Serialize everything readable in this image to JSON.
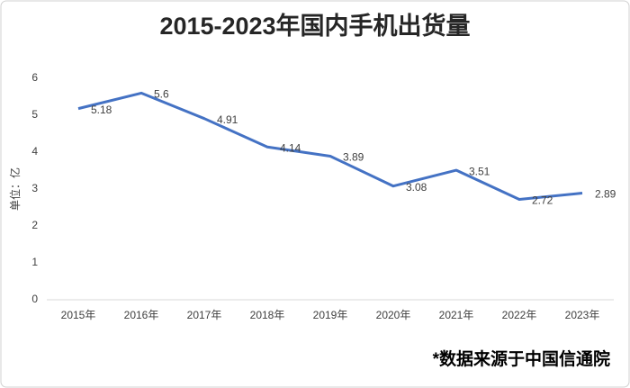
{
  "chart_data": {
    "type": "line",
    "title": "2015-2023年国内手机出货量",
    "y_label": "单位：亿",
    "note": "*数据来源于中国信通院",
    "categories": [
      "2015年",
      "2016年",
      "2017年",
      "2018年",
      "2019年",
      "2020年",
      "2021年",
      "2022年",
      "2023年"
    ],
    "values": [
      5.18,
      5.6,
      4.91,
      4.14,
      3.89,
      3.08,
      3.51,
      2.72,
      2.89
    ],
    "color": "#4472c4",
    "ylim": [
      0,
      6
    ],
    "yticks": [
      0,
      1,
      2,
      3,
      4,
      5,
      6
    ],
    "grid": false
  }
}
